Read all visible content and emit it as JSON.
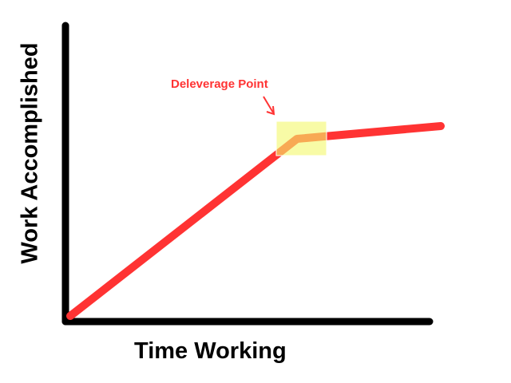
{
  "chart_data": {
    "type": "line",
    "xlabel": "Time Working",
    "ylabel": "Work Accomplished",
    "annotation": "Deleverage Point",
    "grid": false,
    "colors": {
      "line": "#ff3333",
      "axes": "#000000",
      "highlight": "#f9fca7",
      "highlighted_line": "#f88a30",
      "annotation": "#ff3333"
    }
  }
}
